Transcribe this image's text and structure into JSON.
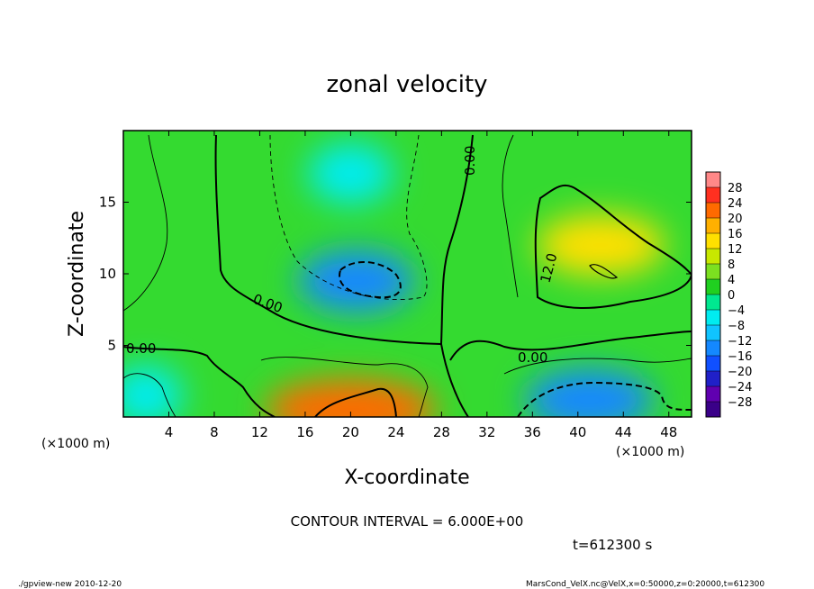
{
  "chart_data": {
    "type": "heatmap",
    "title": "zonal velocity",
    "xlabel": "X-coordinate",
    "ylabel": "Z-coordinate",
    "x_unit_label": "(×1000 m)",
    "y_unit_label": "(×1000 m)",
    "x_ticks": [
      4,
      8,
      12,
      16,
      20,
      24,
      28,
      32,
      36,
      40,
      44,
      48
    ],
    "y_ticks": [
      5,
      10,
      15
    ],
    "xlim": [
      0,
      50
    ],
    "ylim": [
      0,
      20
    ],
    "colorbar_levels": [
      28,
      24,
      20,
      16,
      12,
      8,
      4,
      0,
      -4,
      -8,
      -12,
      -16,
      -20,
      -24,
      -28
    ],
    "colorbar_level_labels": [
      "28",
      "24",
      "20",
      "16",
      "12",
      "8",
      "4",
      "0",
      "−4",
      "−8",
      "−12",
      "−16",
      "−20",
      "−24",
      "−28"
    ],
    "contour_labels": [
      "0.00",
      "0.00",
      "0.00",
      "0.00",
      "12.0"
    ],
    "contour_interval": "CONTOUR INTERVAL = 6.000E+00",
    "time_label": "t=612300 s",
    "features": [
      {
        "x": 20.5,
        "z": 9.5,
        "value": -13
      },
      {
        "x": 20.0,
        "z": 17.0,
        "value": -8
      },
      {
        "x": 42.0,
        "z": 12.0,
        "value": 15
      },
      {
        "x": 20.0,
        "z": 0.5,
        "value": 22
      },
      {
        "x": 41.0,
        "z": 1.2,
        "value": -15
      },
      {
        "x": 2.0,
        "z": 1.5,
        "value": -6
      }
    ]
  },
  "footer": {
    "left": "./gpview-new  2010-12-20",
    "right": "MarsCond_VelX.nc@VelX,x=0:50000,z=0:20000,t=612300"
  },
  "colors": {
    "neg_strong": "#3a0088",
    "neg_blue": "#1060ff",
    "cyan": "#00e8ff",
    "green": "#20d020",
    "yellow": "#f8f000",
    "orange": "#ff9000",
    "red": "#ff2020",
    "pink": "#ff8888"
  }
}
